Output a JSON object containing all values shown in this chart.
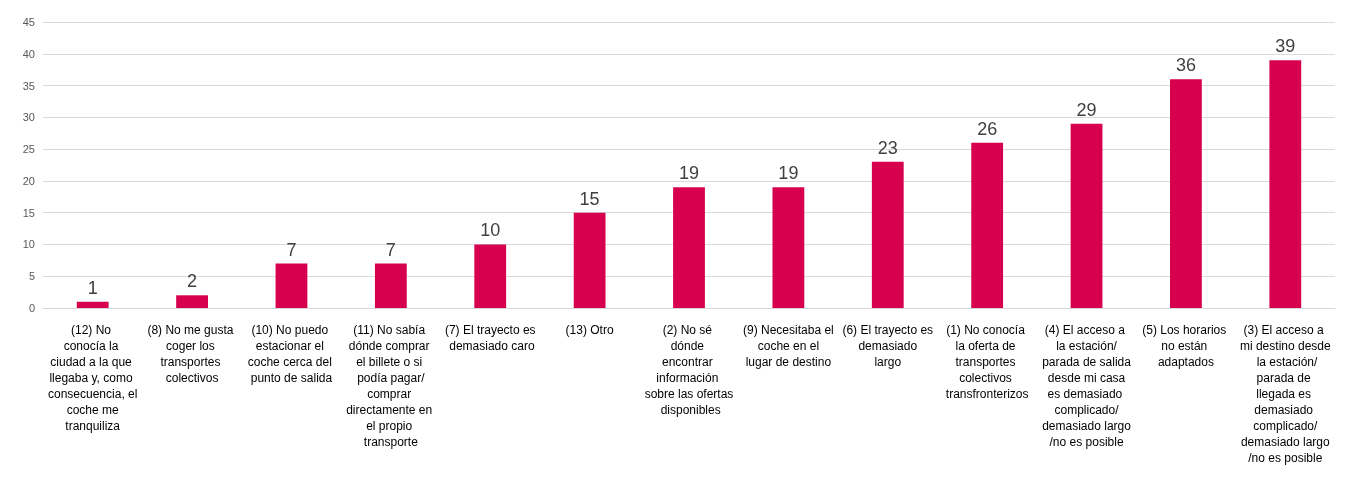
{
  "chart_data": {
    "type": "bar",
    "categories": [
      "(12) No conocía la ciudad a la que llegaba y, como consecuencia, el coche me tranquiliza",
      "(8) No me gusta coger los transportes colectivos",
      "(10) No puedo estacionar el coche cerca del punto de salida",
      "(11) No sabía dónde comprar el billete o si podía pagar/comprar directamente en el propio transporte",
      "(7) El trayecto es demasiado caro",
      "(13) Otro",
      "(2) No sé dónde encontrar información sobre las ofertas disponibles",
      "(9) Necesitaba el coche en el lugar de destino",
      "(6) El trayecto es demasiado largo",
      "(1) No conocía la oferta de transportes colectivos transfronterizos",
      "(4) El acceso a la estación/parada de salida desde mi casa es demasiado complicado/demasiado largo/no es posible",
      "(5) Los horarios no están adaptados",
      "(3) El acceso a mi destino desde la estación/parada de llegada es demasiado complicado/demasiado largo/no es posible"
    ],
    "values": [
      1,
      2,
      7,
      7,
      10,
      15,
      19,
      19,
      23,
      26,
      29,
      36,
      39
    ],
    "color": "#d6004f",
    "ylim": [
      0,
      45
    ],
    "yticks": [
      0,
      5,
      10,
      15,
      20,
      25,
      30,
      35,
      40,
      45
    ],
    "grid": "y",
    "data_labels": true
  }
}
